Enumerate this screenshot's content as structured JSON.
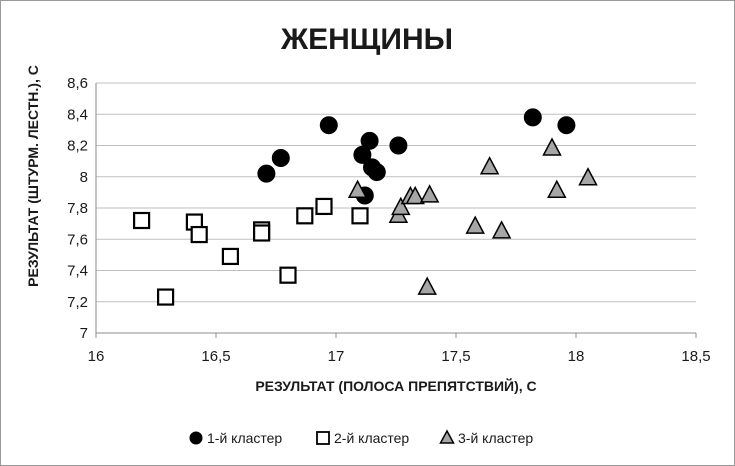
{
  "chart_data": {
    "type": "scatter",
    "title": "ЖЕНЩИНЫ",
    "xlabel": "РЕЗУЛЬТАТ (ПОЛОСА ПРЕПЯТСТВИЙ), С",
    "ylabel": "РЕЗУЛЬТАТ (ШТУРМ. ЛЕСТН.), С",
    "xlim": [
      16,
      18.5
    ],
    "ylim": [
      7,
      8.6
    ],
    "xticks": [
      16,
      16.5,
      17,
      17.5,
      18,
      18.5
    ],
    "xtick_labels": [
      "16",
      "16,5",
      "17",
      "17,5",
      "18",
      "18,5"
    ],
    "yticks": [
      7,
      7.2,
      7.4,
      7.6,
      7.8,
      8,
      8.2,
      8.4,
      8.6
    ],
    "ytick_labels": [
      "7",
      "7,2",
      "7,4",
      "7,6",
      "7,8",
      "8",
      "8,2",
      "8,4",
      "8,6"
    ],
    "grid": {
      "horizontal": true,
      "vertical": false
    },
    "legend_position": "bottom",
    "series": [
      {
        "name": "1-й кластер",
        "marker": "circle",
        "color": "#000000",
        "points": [
          [
            16.71,
            8.02
          ],
          [
            16.77,
            8.12
          ],
          [
            16.97,
            8.33
          ],
          [
            17.11,
            8.14
          ],
          [
            17.14,
            8.23
          ],
          [
            17.15,
            8.06
          ],
          [
            17.17,
            8.03
          ],
          [
            17.12,
            7.88
          ],
          [
            17.26,
            8.2
          ],
          [
            17.82,
            8.38
          ],
          [
            17.96,
            8.33
          ]
        ]
      },
      {
        "name": "2-й кластер",
        "marker": "square",
        "color": "#ffffff",
        "stroke": "#000000",
        "points": [
          [
            16.19,
            7.72
          ],
          [
            16.29,
            7.23
          ],
          [
            16.41,
            7.71
          ],
          [
            16.43,
            7.63
          ],
          [
            16.56,
            7.49
          ],
          [
            16.69,
            7.66
          ],
          [
            16.69,
            7.64
          ],
          [
            16.8,
            7.37
          ],
          [
            16.87,
            7.75
          ],
          [
            16.95,
            7.81
          ],
          [
            17.1,
            7.75
          ]
        ]
      },
      {
        "name": "3-й кластер",
        "marker": "triangle",
        "color": "#a6a6a6",
        "stroke": "#000000",
        "points": [
          [
            17.09,
            7.91
          ],
          [
            17.26,
            7.75
          ],
          [
            17.27,
            7.8
          ],
          [
            17.31,
            7.87
          ],
          [
            17.33,
            7.87
          ],
          [
            17.39,
            7.88
          ],
          [
            17.38,
            7.29
          ],
          [
            17.58,
            7.68
          ],
          [
            17.64,
            8.06
          ],
          [
            17.69,
            7.65
          ],
          [
            17.9,
            8.18
          ],
          [
            17.92,
            7.91
          ],
          [
            18.05,
            7.99
          ]
        ]
      }
    ]
  }
}
